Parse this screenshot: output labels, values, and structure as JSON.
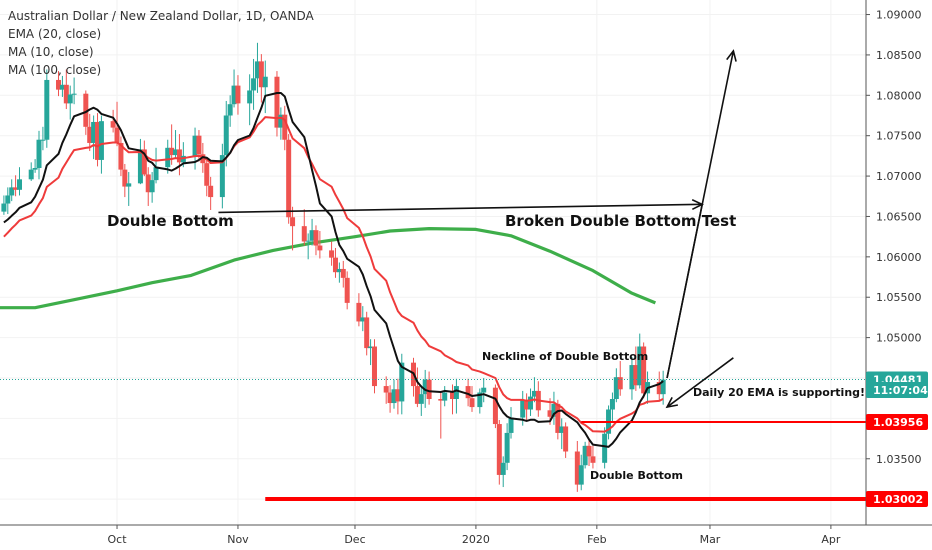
{
  "legend": {
    "title": "Australian Dollar / New Zealand Dollar, 1D, OANDA",
    "lines": [
      "EMA (20, close)",
      "MA (10, close)",
      "MA (100, close)"
    ]
  },
  "colors": {
    "up": "#26a69a",
    "down": "#ef5350",
    "ema20": "#ef3b3b",
    "ma10": "#111111",
    "ma100": "#3eae4a",
    "price_badge": "#26a69a",
    "timer_badge": "#26a69a",
    "red_level": "#ff0000",
    "grid": "#f2f2f2"
  },
  "annotations": {
    "double_bottom_left": "Double Bottom",
    "broken_test": "Broken Double Bottom Test",
    "neckline": "Neckline of Double Bottom",
    "ema_support": "Daily 20 EMA is supporting!",
    "double_bottom_low": "Double Bottom"
  },
  "price_axis": {
    "ticks": [
      "1.09000",
      "1.08500",
      "1.08000",
      "1.07500",
      "1.07000",
      "1.06500",
      "1.06000",
      "1.05500",
      "1.05000",
      "1.04500",
      "1.04000",
      "1.03500",
      "1.03000"
    ]
  },
  "badges": {
    "current_price": "1.04481",
    "countdown": "11:07:04",
    "level_1": "1.03956",
    "level_2": "1.03002"
  },
  "time_axis": {
    "labels": [
      "Oct",
      "Nov",
      "Dec",
      "2020",
      "Feb",
      "Mar",
      "Apr"
    ]
  },
  "chart_data": {
    "type": "candlestick",
    "symbol": "AUDNZD",
    "timeframe": "1D",
    "ylim": [
      1.0268,
      1.0918
    ],
    "x_range": [
      "2019-09-01",
      "2020-04-10"
    ],
    "horizontal_levels": [
      {
        "value": 1.04481,
        "style": "dotted",
        "color": "#26a69a"
      },
      {
        "value": 1.03956,
        "style": "solid",
        "color": "#ff0000",
        "from": "2020-01-28"
      },
      {
        "value": 1.03002,
        "style": "solid",
        "color": "#ff0000",
        "from": "2019-11-08"
      }
    ],
    "trend_arrow": {
      "from": [
        "2019-10-27",
        1.0655
      ],
      "to": [
        "2020-02-28",
        1.0665
      ]
    },
    "projection_arrows": [
      {
        "from": [
          "2020-02-19",
          1.045
        ],
        "to": [
          "2020-03-07",
          1.0855
        ]
      },
      {
        "from": [
          "2020-03-07",
          1.0475
        ],
        "to": [
          "2020-02-19",
          1.0414
        ]
      }
    ],
    "ma100": [
      [
        "2019-09-01",
        1.0537
      ],
      [
        "2019-09-10",
        1.0537
      ],
      [
        "2019-09-20",
        1.0547
      ],
      [
        "2019-10-01",
        1.0558
      ],
      [
        "2019-10-10",
        1.0568
      ],
      [
        "2019-10-20",
        1.0577
      ],
      [
        "2019-10-31",
        1.0596
      ],
      [
        "2019-11-10",
        1.0608
      ],
      [
        "2019-11-20",
        1.0617
      ],
      [
        "2019-12-01",
        1.0625
      ],
      [
        "2019-12-10",
        1.0632
      ],
      [
        "2019-12-20",
        1.0635
      ],
      [
        "2020-01-01",
        1.0634
      ],
      [
        "2020-01-10",
        1.0626
      ],
      [
        "2020-01-20",
        1.0607
      ],
      [
        "2020-01-31",
        1.0583
      ],
      [
        "2020-02-10",
        1.0555
      ],
      [
        "2020-02-16",
        1.0543
      ]
    ],
    "candles": [
      [
        "2019-09-02",
        1.0656,
        1.0676,
        1.0652,
        1.0666
      ],
      [
        "2019-09-03",
        1.0666,
        1.0686,
        1.0653,
        1.0676
      ],
      [
        "2019-09-04",
        1.0676,
        1.0696,
        1.0669,
        1.0686
      ],
      [
        "2019-09-05",
        1.0686,
        1.0701,
        1.0675,
        1.0683
      ],
      [
        "2019-09-06",
        1.0683,
        1.0711,
        1.0676,
        1.0696
      ],
      [
        "2019-09-09",
        1.0696,
        1.0717,
        1.0694,
        1.0708
      ],
      [
        "2019-09-10",
        1.0708,
        1.0721,
        1.0704,
        1.071
      ],
      [
        "2019-09-11",
        1.071,
        1.0756,
        1.0696,
        1.0745
      ],
      [
        "2019-09-12",
        1.0745,
        1.0761,
        1.0732,
        1.0745
      ],
      [
        "2019-09-13",
        1.0745,
        1.0832,
        1.0735,
        1.0819
      ],
      [
        "2019-09-16",
        1.0819,
        1.083,
        1.0799,
        1.0807
      ],
      [
        "2019-09-17",
        1.0807,
        1.0824,
        1.0798,
        1.0813
      ],
      [
        "2019-09-18",
        1.0813,
        1.0832,
        1.0783,
        1.079
      ],
      [
        "2019-09-19",
        1.079,
        1.0812,
        1.077,
        1.0801
      ],
      [
        "2019-09-20",
        1.0801,
        1.0822,
        1.0789,
        1.0802
      ],
      [
        "2019-09-23",
        1.0802,
        1.0806,
        1.0751,
        1.0761
      ],
      [
        "2019-09-24",
        1.0761,
        1.0777,
        1.0731,
        1.0741
      ],
      [
        "2019-09-25",
        1.0741,
        1.0775,
        1.0721,
        1.0767
      ],
      [
        "2019-09-26",
        1.0767,
        1.0778,
        1.0712,
        1.072
      ],
      [
        "2019-09-27",
        1.072,
        1.0775,
        1.0703,
        1.0768
      ],
      [
        "2019-09-30",
        1.0768,
        1.0782,
        1.0754,
        1.076
      ],
      [
        "2019-10-01",
        1.076,
        1.0792,
        1.0737,
        1.0741
      ],
      [
        "2019-10-02",
        1.0741,
        1.0749,
        1.07,
        1.0708
      ],
      [
        "2019-10-03",
        1.0708,
        1.0715,
        1.0674,
        1.0687
      ],
      [
        "2019-10-04",
        1.0687,
        1.0705,
        1.0663,
        1.0691
      ],
      [
        "2019-10-07",
        1.0691,
        1.0746,
        1.069,
        1.0733
      ],
      [
        "2019-10-08",
        1.0733,
        1.0744,
        1.07,
        1.0702
      ],
      [
        "2019-10-09",
        1.0702,
        1.0711,
        1.0663,
        1.068
      ],
      [
        "2019-10-10",
        1.068,
        1.0705,
        1.0667,
        1.0695
      ],
      [
        "2019-10-11",
        1.0695,
        1.0735,
        1.0691,
        1.0711
      ],
      [
        "2019-10-14",
        1.0711,
        1.0745,
        1.0703,
        1.0735
      ],
      [
        "2019-10-15",
        1.0735,
        1.0764,
        1.0714,
        1.0726
      ],
      [
        "2019-10-16",
        1.0726,
        1.0757,
        1.0723,
        1.0733
      ],
      [
        "2019-10-17",
        1.0733,
        1.0752,
        1.0701,
        1.0717
      ],
      [
        "2019-10-18",
        1.0717,
        1.0742,
        1.0711,
        1.0725
      ],
      [
        "2019-10-21",
        1.0725,
        1.076,
        1.0708,
        1.075
      ],
      [
        "2019-10-22",
        1.075,
        1.0757,
        1.0718,
        1.0727
      ],
      [
        "2019-10-23",
        1.0727,
        1.0741,
        1.0704,
        1.0716
      ],
      [
        "2019-10-24",
        1.0716,
        1.0722,
        1.0675,
        1.0688
      ],
      [
        "2019-10-25",
        1.0688,
        1.0699,
        1.0658,
        1.0674
      ],
      [
        "2019-10-28",
        1.0674,
        1.074,
        1.066,
        1.0726
      ],
      [
        "2019-10-29",
        1.0726,
        1.0793,
        1.0712,
        1.0775
      ],
      [
        "2019-10-30",
        1.0775,
        1.08,
        1.0761,
        1.0789
      ],
      [
        "2019-10-31",
        1.0789,
        1.0832,
        1.0785,
        1.0812
      ],
      [
        "2019-11-01",
        1.0812,
        1.0825,
        1.0776,
        1.079
      ],
      [
        "2019-11-04",
        1.079,
        1.0826,
        1.0763,
        1.0806
      ],
      [
        "2019-11-05",
        1.0806,
        1.0845,
        1.0782,
        1.0821
      ],
      [
        "2019-11-06",
        1.0821,
        1.0865,
        1.0803,
        1.0842
      ],
      [
        "2019-11-07",
        1.0842,
        1.0851,
        1.0791,
        1.081
      ],
      [
        "2019-11-08",
        1.081,
        1.0843,
        1.0778,
        1.0823
      ],
      [
        "2019-11-11",
        1.0823,
        1.083,
        1.0749,
        1.076
      ],
      [
        "2019-11-12",
        1.076,
        1.0785,
        1.0745,
        1.0776
      ],
      [
        "2019-11-13",
        1.0776,
        1.0787,
        1.0732,
        1.0745
      ],
      [
        "2019-11-14",
        1.0745,
        1.0752,
        1.0641,
        1.0649
      ],
      [
        "2019-11-15",
        1.0649,
        1.0662,
        1.0608,
        1.0638
      ],
      [
        "2019-11-18",
        1.0638,
        1.0659,
        1.0614,
        1.0619
      ],
      [
        "2019-11-19",
        1.0619,
        1.0629,
        1.0597,
        1.062
      ],
      [
        "2019-11-20",
        1.062,
        1.0647,
        1.0614,
        1.0633
      ],
      [
        "2019-11-21",
        1.0633,
        1.0639,
        1.0602,
        1.0614
      ],
      [
        "2019-11-22",
        1.0614,
        1.0632,
        1.0598,
        1.0608
      ],
      [
        "2019-11-25",
        1.0608,
        1.0619,
        1.0589,
        1.0599
      ],
      [
        "2019-11-26",
        1.0599,
        1.0611,
        1.0574,
        1.0581
      ],
      [
        "2019-11-27",
        1.0581,
        1.0593,
        1.0568,
        1.0585
      ],
      [
        "2019-11-28",
        1.0585,
        1.0595,
        1.0562,
        1.0574
      ],
      [
        "2019-11-29",
        1.0574,
        1.0582,
        1.0535,
        1.0543
      ],
      [
        "2019-12-02",
        1.0543,
        1.0555,
        1.0514,
        1.052
      ],
      [
        "2019-12-03",
        1.052,
        1.0539,
        1.0508,
        1.0525
      ],
      [
        "2019-12-04",
        1.0525,
        1.0532,
        1.0478,
        1.0487
      ],
      [
        "2019-12-05",
        1.0487,
        1.0498,
        1.0466,
        1.0489
      ],
      [
        "2019-12-06",
        1.0489,
        1.0498,
        1.0431,
        1.044
      ],
      [
        "2019-12-09",
        1.044,
        1.0452,
        1.0418,
        1.0432
      ],
      [
        "2019-12-10",
        1.0432,
        1.0441,
        1.0407,
        1.0419
      ],
      [
        "2019-12-11",
        1.0419,
        1.0448,
        1.0412,
        1.0436
      ],
      [
        "2019-12-12",
        1.0436,
        1.0449,
        1.0405,
        1.0421
      ],
      [
        "2019-12-13",
        1.0421,
        1.048,
        1.0405,
        1.0469
      ],
      [
        "2019-12-16",
        1.0469,
        1.0475,
        1.0427,
        1.044
      ],
      [
        "2019-12-17",
        1.044,
        1.0463,
        1.0414,
        1.0418
      ],
      [
        "2019-12-18",
        1.0418,
        1.0441,
        1.0403,
        1.043
      ],
      [
        "2019-12-19",
        1.043,
        1.046,
        1.0413,
        1.0448
      ],
      [
        "2019-12-20",
        1.0448,
        1.0458,
        1.0417,
        1.0424
      ],
      [
        "2019-12-23",
        1.0424,
        1.0433,
        1.0375,
        1.0422
      ],
      [
        "2019-12-24",
        1.0422,
        1.044,
        1.0415,
        1.0432
      ],
      [
        "2019-12-26",
        1.0432,
        1.0442,
        1.0405,
        1.0424
      ],
      [
        "2019-12-27",
        1.0424,
        1.0449,
        1.0406,
        1.044
      ],
      [
        "2019-12-30",
        1.044,
        1.0449,
        1.0415,
        1.0425
      ],
      [
        "2019-12-31",
        1.0425,
        1.044,
        1.0408,
        1.0414
      ],
      [
        "2020-01-02",
        1.0414,
        1.0437,
        1.0406,
        1.0432
      ],
      [
        "2020-01-03",
        1.0432,
        1.045,
        1.042,
        1.0438
      ],
      [
        "2020-01-06",
        1.0438,
        1.0442,
        1.0388,
        1.0393
      ],
      [
        "2020-01-07",
        1.0393,
        1.0398,
        1.0318,
        1.033
      ],
      [
        "2020-01-08",
        1.033,
        1.0353,
        1.0315,
        1.0345
      ],
      [
        "2020-01-09",
        1.0345,
        1.0394,
        1.0336,
        1.0382
      ],
      [
        "2020-01-10",
        1.0382,
        1.0414,
        1.0375,
        1.0401
      ],
      [
        "2020-01-13",
        1.0401,
        1.0434,
        1.0391,
        1.0423
      ],
      [
        "2020-01-14",
        1.0423,
        1.0431,
        1.0396,
        1.0411
      ],
      [
        "2020-01-15",
        1.0411,
        1.0437,
        1.0403,
        1.0427
      ],
      [
        "2020-01-16",
        1.0427,
        1.0451,
        1.042,
        1.0434
      ],
      [
        "2020-01-17",
        1.0434,
        1.0446,
        1.0402,
        1.041
      ],
      [
        "2020-01-20",
        1.041,
        1.0425,
        1.0392,
        1.0402
      ],
      [
        "2020-01-21",
        1.0402,
        1.0433,
        1.0392,
        1.0418
      ],
      [
        "2020-01-22",
        1.0418,
        1.0423,
        1.0374,
        1.0382
      ],
      [
        "2020-01-23",
        1.0382,
        1.04,
        1.0362,
        1.039
      ],
      [
        "2020-01-24",
        1.039,
        1.0395,
        1.0351,
        1.0359
      ],
      [
        "2020-01-27",
        1.0359,
        1.0372,
        1.0309,
        1.0318
      ],
      [
        "2020-01-28",
        1.0318,
        1.0355,
        1.0311,
        1.0342
      ],
      [
        "2020-01-29",
        1.0342,
        1.0371,
        1.0338,
        1.0366
      ],
      [
        "2020-01-30",
        1.0366,
        1.0374,
        1.0341,
        1.0353
      ],
      [
        "2020-01-31",
        1.0353,
        1.0366,
        1.0338,
        1.0345
      ],
      [
        "2020-02-03",
        1.0345,
        1.0389,
        1.0338,
        1.0381
      ],
      [
        "2020-02-04",
        1.0381,
        1.0416,
        1.0374,
        1.0411
      ],
      [
        "2020-02-05",
        1.0411,
        1.0432,
        1.0395,
        1.0424
      ],
      [
        "2020-02-06",
        1.0424,
        1.0462,
        1.042,
        1.0451
      ],
      [
        "2020-02-07",
        1.0451,
        1.0471,
        1.0428,
        1.0436
      ],
      [
        "2020-02-10",
        1.0436,
        1.0476,
        1.0423,
        1.0466
      ],
      [
        "2020-02-11",
        1.0466,
        1.0489,
        1.0434,
        1.0441
      ],
      [
        "2020-02-12",
        1.0441,
        1.0505,
        1.0437,
        1.0489
      ],
      [
        "2020-02-13",
        1.0489,
        1.0494,
        1.0425,
        1.0431
      ],
      [
        "2020-02-14",
        1.0431,
        1.0458,
        1.0418,
        1.0445
      ],
      [
        "2020-02-17",
        1.0445,
        1.0458,
        1.0421,
        1.043
      ],
      [
        "2020-02-18",
        1.043,
        1.0459,
        1.0417,
        1.0448
      ]
    ]
  }
}
